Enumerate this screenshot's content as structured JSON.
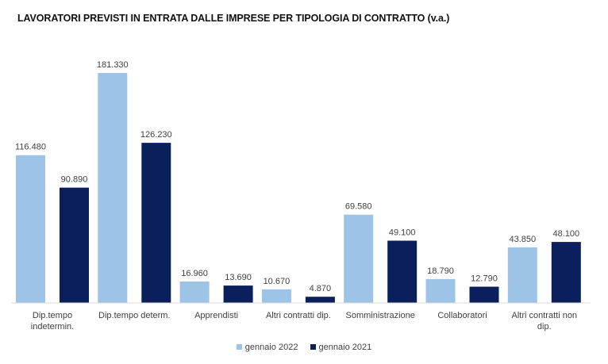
{
  "chart_data": {
    "type": "bar",
    "title": "LAVORATORI PREVISTI IN ENTRATA DALLE IMPRESE PER TIPOLOGIA DI CONTRATTO (v.a.)",
    "categories": [
      [
        "Dip.tempo",
        "indetermin."
      ],
      [
        "Dip.tempo determ."
      ],
      [
        "Apprendisti"
      ],
      [
        "Altri contratti dip."
      ],
      [
        "Somministrazione"
      ],
      [
        "Collaboratori"
      ],
      [
        "Altri contratti non",
        "dip."
      ]
    ],
    "series": [
      {
        "name": "gennaio 2022",
        "color": "#9dc3e6",
        "values": [
          116480,
          181330,
          16960,
          10670,
          69580,
          18790,
          43850
        ],
        "labels": [
          "116.480",
          "181.330",
          "16.960",
          "10.670",
          "69.580",
          "18.790",
          "43.850"
        ]
      },
      {
        "name": "gennaio 2021",
        "color": "#0a1f5c",
        "values": [
          90890,
          126230,
          13690,
          4870,
          49100,
          12790,
          48100
        ],
        "labels": [
          "90.890",
          "126.230",
          "13.690",
          "4.870",
          "49.100",
          "12.790",
          "48.100"
        ]
      }
    ],
    "ylim": [
      0,
      181330
    ],
    "grid": false,
    "legend": "bottom"
  }
}
